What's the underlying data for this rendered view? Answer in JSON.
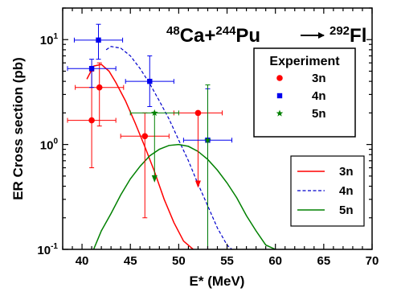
{
  "chart_data": {
    "type": "scatter",
    "title": "",
    "reaction": {
      "projectile_mass": "48",
      "projectile": "Ca",
      "plus": "+",
      "target_mass": "244",
      "target": "Pu",
      "product_mass": "292",
      "product": "Fl"
    },
    "xlabel": "E* (MeV)",
    "ylabel": "ER Cross section (pb)",
    "x_ticks": [
      40,
      45,
      50,
      55,
      60,
      65,
      70
    ],
    "y_tick_labels": [
      {
        "value": 0.1,
        "mant": "10",
        "exp": "-1"
      },
      {
        "value": 1,
        "mant": "10",
        "exp": "0"
      },
      {
        "value": 10,
        "mant": "10",
        "exp": "1"
      }
    ],
    "xlim": [
      38,
      70
    ],
    "ylim": [
      0.1,
      20
    ],
    "y_scale": "log",
    "grid": false,
    "experiment_legend": {
      "title": "Experiment",
      "placement": "upper-right",
      "entries": [
        {
          "label": "3n",
          "marker": "circle",
          "color": "#ff0000"
        },
        {
          "label": "4n",
          "marker": "square",
          "color": "#0000ee"
        },
        {
          "label": "5n",
          "marker": "star",
          "color": "#008000"
        }
      ]
    },
    "theory_legend": {
      "placement": "right",
      "entries": [
        {
          "label": "3n",
          "style": "solid",
          "color": "#ff0000"
        },
        {
          "label": "4n",
          "style": "dashed",
          "color": "#0000cc"
        },
        {
          "label": "5n",
          "style": "solid",
          "color": "#008000"
        }
      ]
    },
    "points": [
      {
        "channel": "3n",
        "x": 41.0,
        "y": 1.7,
        "xerr": 2.5,
        "ylo": 0.6,
        "yhi": 5.0
      },
      {
        "channel": "3n",
        "x": 41.8,
        "y": 3.5,
        "xerr": 2.5,
        "ylo": 1.5,
        "yhi": 6.0
      },
      {
        "channel": "3n",
        "x": 46.5,
        "y": 1.2,
        "xerr": 2.5,
        "ylo": 0.2,
        "yhi": 2.0
      },
      {
        "channel": "3n",
        "x": 52.0,
        "y": 2.0,
        "xerr": 2.5,
        "ylo": 0.4,
        "yhi": 2.0,
        "arrow": true
      },
      {
        "channel": "4n",
        "x": 41.0,
        "y": 5.3,
        "xerr": 2.5,
        "ylo": 3.5,
        "yhi": 6.5
      },
      {
        "channel": "4n",
        "x": 41.7,
        "y": 9.9,
        "xerr": 2.5,
        "ylo": 6.5,
        "yhi": 14.0
      },
      {
        "channel": "4n",
        "x": 47.0,
        "y": 4.0,
        "xerr": 2.5,
        "ylo": 2.3,
        "yhi": 7.0
      },
      {
        "channel": "4n",
        "x": 53.0,
        "y": 1.1,
        "xerr": 2.5,
        "ylo": 0.1,
        "yhi": 3.4
      },
      {
        "channel": "5n",
        "x": 47.5,
        "y": 2.0,
        "xerr": 2.5,
        "ylo": 0.45,
        "yhi": 2.0,
        "arrow": true
      },
      {
        "channel": "5n",
        "x": 53.0,
        "y": 1.1,
        "xerr": 0,
        "ylo": 0.1,
        "yhi": 3.7
      }
    ],
    "curves": [
      {
        "channel": "3n",
        "x": [
          40.5,
          41.2,
          42.0,
          42.8,
          43.5,
          44.5,
          45.5,
          46.5,
          47.5,
          48.5,
          49.5,
          50.5,
          51.5
        ],
        "y": [
          4.2,
          5.6,
          5.8,
          5.0,
          3.9,
          2.6,
          1.6,
          0.95,
          0.55,
          0.3,
          0.18,
          0.12,
          0.1
        ]
      },
      {
        "channel": "4n",
        "x": [
          42.5,
          43.0,
          44.0,
          45.0,
          46.0,
          47.0,
          48.0,
          49.0,
          50.0,
          51.0,
          52.0,
          53.0,
          54.0,
          55.0,
          55.5
        ],
        "y": [
          8.0,
          8.6,
          8.3,
          7.0,
          5.3,
          3.8,
          2.6,
          1.75,
          1.1,
          0.7,
          0.42,
          0.26,
          0.16,
          0.11,
          0.1
        ]
      },
      {
        "channel": "5n",
        "x": [
          41.2,
          42.0,
          43.0,
          44.0,
          45.0,
          46.0,
          47.0,
          48.0,
          49.0,
          50.0,
          51.0,
          52.0,
          53.0,
          54.0,
          55.0,
          56.0,
          57.0,
          58.0,
          59.0,
          60.0
        ],
        "y": [
          0.1,
          0.15,
          0.22,
          0.33,
          0.47,
          0.62,
          0.78,
          0.9,
          0.98,
          1.0,
          0.96,
          0.86,
          0.72,
          0.57,
          0.43,
          0.31,
          0.21,
          0.15,
          0.11,
          0.1
        ]
      }
    ]
  }
}
